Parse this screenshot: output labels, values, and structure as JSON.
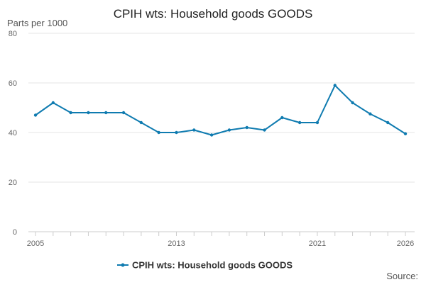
{
  "chart_data": {
    "type": "line",
    "title": "CPIH wts: Household goods GOODS",
    "ylabel": "Parts per 1000",
    "xlabel": "",
    "source_label": "Source:",
    "ylim": [
      0,
      80
    ],
    "y_ticks": [
      0,
      20,
      40,
      60,
      80
    ],
    "x_ticks": [
      2005,
      2013,
      2021,
      2026
    ],
    "xlim": [
      2005,
      2026
    ],
    "grid": true,
    "legend_position": "bottom",
    "series": [
      {
        "name": "CPIH wts: Household goods GOODS",
        "color": "#0f7bb0",
        "x": [
          2005,
          2006,
          2007,
          2008,
          2009,
          2010,
          2011,
          2012,
          2013,
          2014,
          2015,
          2016,
          2017,
          2018,
          2019,
          2020,
          2021,
          2022,
          2023,
          2024,
          2025,
          2026
        ],
        "values": [
          47,
          52,
          48,
          48,
          48,
          48,
          44,
          40,
          40,
          41,
          39,
          41,
          42,
          41,
          46,
          44,
          44,
          59,
          52,
          47.5,
          44,
          39.5
        ]
      }
    ]
  }
}
